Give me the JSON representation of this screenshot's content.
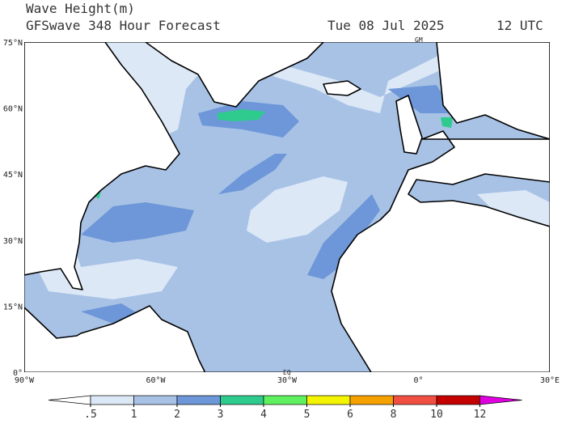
{
  "header": {
    "title": "Wave Height(m)",
    "subtitle": "GFSwave 348 Hour Forecast",
    "date": "Tue 08 Jul 2025",
    "time": "12 UTC"
  },
  "map": {
    "lat_labels": [
      "75°N",
      "60°N",
      "45°N",
      "30°N",
      "15°N",
      "0°"
    ],
    "lon_labels": [
      "90°W",
      "60°W",
      "30°W",
      "0°",
      "30°E"
    ],
    "markers": [
      "GM",
      "EQ"
    ]
  },
  "colorbar": {
    "ticks": [
      {
        "value": 0.5,
        "label": ".5"
      },
      1,
      2,
      3,
      4,
      5,
      6,
      8,
      10,
      12
    ],
    "colors": [
      "#ffffff",
      "#dce8f6",
      "#a8c2e6",
      "#6d97d8",
      "#2fcb8e",
      "#5ff05f",
      "#f4f400",
      "#f5a100",
      "#f24f43",
      "#c40000",
      "#e000e0"
    ]
  }
}
